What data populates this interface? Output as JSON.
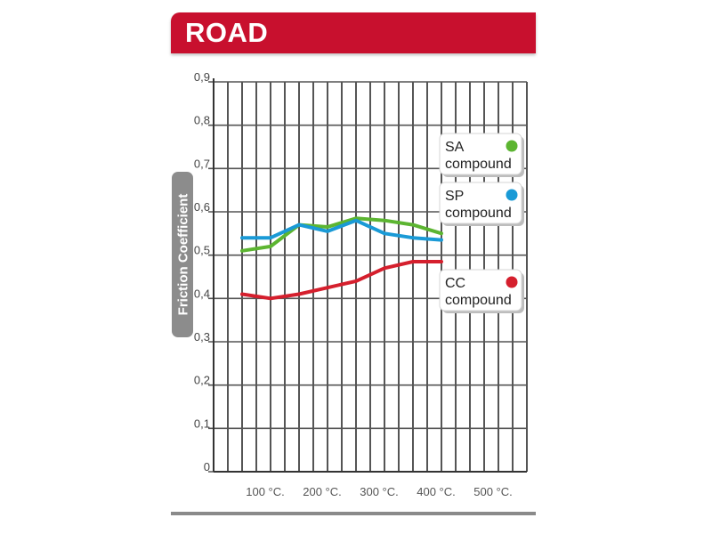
{
  "header": {
    "title": "ROAD",
    "color": "#c8102e"
  },
  "chart_data": {
    "type": "line",
    "title": "",
    "xlabel": "",
    "ylabel": "Friction Coefficient",
    "xlim": [
      0,
      550
    ],
    "ylim": [
      0,
      0.9
    ],
    "grid": true,
    "yticks": [
      {
        "value": 0,
        "label": "0"
      },
      {
        "value": 0.1,
        "label": "0,1"
      },
      {
        "value": 0.2,
        "label": "0,2"
      },
      {
        "value": 0.3,
        "label": "0,3"
      },
      {
        "value": 0.4,
        "label": "0,4"
      },
      {
        "value": 0.5,
        "label": "0,5"
      },
      {
        "value": 0.6,
        "label": "0,6"
      },
      {
        "value": 0.7,
        "label": "0,7"
      },
      {
        "value": 0.8,
        "label": "0,8"
      },
      {
        "value": 0.9,
        "label": "0,9"
      }
    ],
    "xticks": [
      {
        "value": 100,
        "label": "100 °C."
      },
      {
        "value": 200,
        "label": "200 °C."
      },
      {
        "value": 300,
        "label": "300 °C."
      },
      {
        "value": 400,
        "label": "400 °C."
      },
      {
        "value": 500,
        "label": "500 °C."
      }
    ],
    "legend_position": "right",
    "series": [
      {
        "name": "SA compound",
        "color": "#5cb531",
        "x": [
          50,
          100,
          150,
          200,
          250,
          300,
          350,
          400
        ],
        "y": [
          0.51,
          0.52,
          0.57,
          0.565,
          0.585,
          0.58,
          0.57,
          0.55
        ]
      },
      {
        "name": "SP compound",
        "color": "#1a9ad6",
        "x": [
          50,
          100,
          150,
          200,
          250,
          300,
          350,
          400
        ],
        "y": [
          0.54,
          0.54,
          0.57,
          0.555,
          0.58,
          0.55,
          0.54,
          0.535
        ]
      },
      {
        "name": "CC compound",
        "color": "#d51f2d",
        "x": [
          50,
          100,
          150,
          200,
          250,
          300,
          350,
          400
        ],
        "y": [
          0.41,
          0.4,
          0.41,
          0.425,
          0.44,
          0.47,
          0.485,
          0.485
        ]
      }
    ],
    "legend": [
      {
        "line1": "SA",
        "line2": "compound",
        "color": "#5cb531"
      },
      {
        "line1": "SP",
        "line2": "compound",
        "color": "#1a9ad6"
      },
      {
        "line1": "CC",
        "line2": "compound",
        "color": "#d51f2d"
      }
    ]
  }
}
